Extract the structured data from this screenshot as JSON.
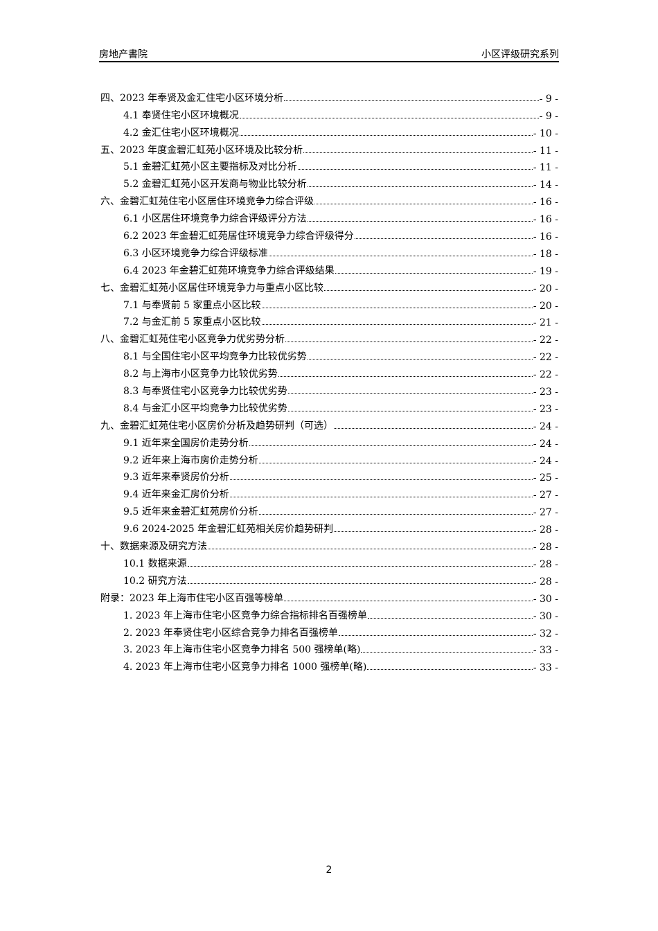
{
  "header": {
    "left": "房地产書院",
    "right": "小区评级研究系列"
  },
  "toc": [
    {
      "level": 1,
      "title": "四、2023 年奉贤及金汇住宅小区环境分析",
      "page": "- 9 -"
    },
    {
      "level": 2,
      "title": "4.1 奉贤住宅小区环境概况",
      "page": "- 9 -"
    },
    {
      "level": 2,
      "title": "4.2 金汇住宅小区环境概况",
      "page": "- 10 -"
    },
    {
      "level": 1,
      "title": "五、2023 年度金碧汇虹苑小区环境及比较分析",
      "page": "- 11 -"
    },
    {
      "level": 2,
      "title": "5.1 金碧汇虹苑小区主要指标及对比分析",
      "page": "- 11 -"
    },
    {
      "level": 2,
      "title": "5.2 金碧汇虹苑小区开发商与物业比较分析",
      "page": "- 14 -"
    },
    {
      "level": 1,
      "title": "六、金碧汇虹苑住宅小区居住环境竞争力综合评级",
      "page": "- 16 -"
    },
    {
      "level": 2,
      "title": "6.1 小区居住环境竞争力综合评级评分方法",
      "page": "- 16 -"
    },
    {
      "level": 2,
      "title": "6.2 2023 年金碧汇虹苑居住环境竞争力综合评级得分",
      "page": "- 16 -"
    },
    {
      "level": 2,
      "title": "6.3 小区环境竞争力综合评级标准",
      "page": "- 18 -"
    },
    {
      "level": 2,
      "title": "6.4 2023 年金碧汇虹苑环境竞争力综合评级结果",
      "page": "- 19 -"
    },
    {
      "level": 1,
      "title": "七、金碧汇虹苑小区居住环境竞争力与重点小区比较",
      "page": "- 20 -"
    },
    {
      "level": 2,
      "title": "7.1 与奉贤前 5 家重点小区比较",
      "page": "- 20 -"
    },
    {
      "level": 2,
      "title": "7.2 与金汇前 5 家重点小区比较",
      "page": "- 21 -"
    },
    {
      "level": 1,
      "title": "八、金碧汇虹苑住宅小区竞争力优劣势分析",
      "page": "- 22 -"
    },
    {
      "level": 2,
      "title": "8.1 与全国住宅小区平均竞争力比较优劣势",
      "page": "- 22 -"
    },
    {
      "level": 2,
      "title": "8.2 与上海市小区竞争力比较优劣势",
      "page": "- 22 -"
    },
    {
      "level": 2,
      "title": "8.3 与奉贤住宅小区竞争力比较优劣势",
      "page": "- 23 -"
    },
    {
      "level": 2,
      "title": "8.4 与金汇小区平均竞争力比较优劣势",
      "page": "- 23 -"
    },
    {
      "level": 1,
      "title": "九、金碧汇虹苑住宅小区房价分析及趋势研判（可选）",
      "page": "- 24 -"
    },
    {
      "level": 2,
      "title": "9.1 近年来全国房价走势分析",
      "page": "- 24 -"
    },
    {
      "level": 2,
      "title": "9.2 近年来上海市房价走势分析",
      "page": "- 24 -"
    },
    {
      "level": 2,
      "title": "9.3 近年来奉贤房价分析",
      "page": "- 25 -"
    },
    {
      "level": 2,
      "title": "9.4 近年来金汇房价分析",
      "page": "- 27 -"
    },
    {
      "level": 2,
      "title": "9.5 近年来金碧汇虹苑房价分析",
      "page": "- 27 -"
    },
    {
      "level": 2,
      "title": "9.6 2024-2025 年金碧汇虹苑相关房价趋势研判",
      "page": "- 28 -"
    },
    {
      "level": 1,
      "title": "十、数据来源及研究方法",
      "page": "- 28 -"
    },
    {
      "level": 2,
      "title": "10.1 数据来源",
      "page": "- 28 -"
    },
    {
      "level": 2,
      "title": "10.2 研究方法",
      "page": "- 28 -"
    },
    {
      "level": 1,
      "title": "附录：2023 年上海市住宅小区百强等榜单",
      "page": "- 30 -"
    },
    {
      "level": 2,
      "title": "1.  2023 年上海市住宅小区竞争力综合指标排名百强榜单",
      "page": "- 30 -"
    },
    {
      "level": 2,
      "title": "2.  2023 年奉贤住宅小区综合竞争力排名百强榜单",
      "page": "- 32 -"
    },
    {
      "level": 2,
      "title": "3.  2023 年上海市住宅小区竞争力排名 500 强榜单(略)",
      "page": "- 33 -"
    },
    {
      "level": 2,
      "title": "4.  2023 年上海市住宅小区竞争力排名 1000 强榜单(略)",
      "page": "- 33 -"
    }
  ],
  "footer": {
    "page_number": "2"
  }
}
